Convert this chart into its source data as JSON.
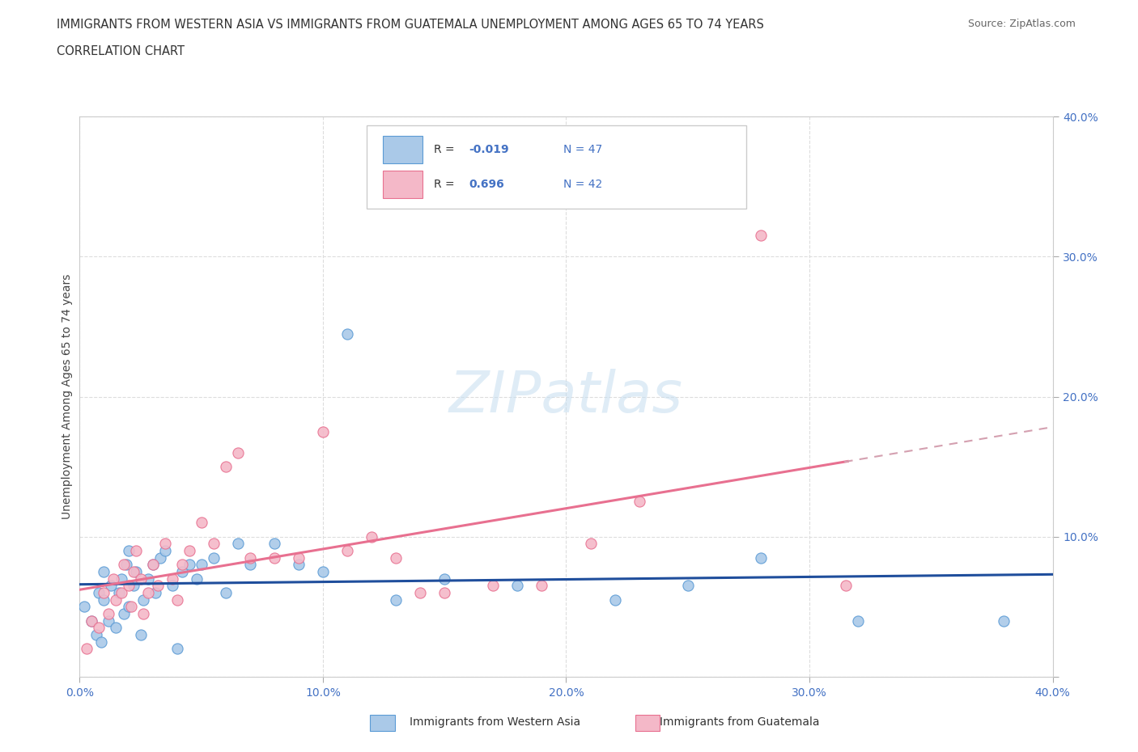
{
  "title_line1": "IMMIGRANTS FROM WESTERN ASIA VS IMMIGRANTS FROM GUATEMALA UNEMPLOYMENT AMONG AGES 65 TO 74 YEARS",
  "title_line2": "CORRELATION CHART",
  "source_text": "Source: ZipAtlas.com",
  "ylabel": "Unemployment Among Ages 65 to 74 years",
  "xlim": [
    0.0,
    0.4
  ],
  "ylim": [
    0.0,
    0.4
  ],
  "xticks": [
    0.0,
    0.1,
    0.2,
    0.3,
    0.4
  ],
  "yticks": [
    0.0,
    0.1,
    0.2,
    0.3,
    0.4
  ],
  "grid_color": "#dddddd",
  "background_color": "#ffffff",
  "watermark_text": "ZIPatlas",
  "series1_color": "#aac9e8",
  "series1_edge": "#5b9bd5",
  "series2_color": "#f4b8c8",
  "series2_edge": "#e87090",
  "series1_label": "Immigrants from Western Asia",
  "series2_label": "Immigrants from Guatemala",
  "series1_R": -0.019,
  "series1_N": 47,
  "series2_R": 0.696,
  "series2_N": 42,
  "line1_color": "#1f4e9c",
  "line2_color": "#e87090",
  "line2_dash_color": "#d4a0b0",
  "series1_x": [
    0.002,
    0.005,
    0.007,
    0.008,
    0.009,
    0.01,
    0.01,
    0.012,
    0.013,
    0.015,
    0.016,
    0.017,
    0.018,
    0.019,
    0.02,
    0.02,
    0.022,
    0.023,
    0.025,
    0.026,
    0.028,
    0.03,
    0.031,
    0.033,
    0.035,
    0.038,
    0.04,
    0.042,
    0.045,
    0.048,
    0.05,
    0.055,
    0.06,
    0.065,
    0.07,
    0.08,
    0.09,
    0.1,
    0.11,
    0.13,
    0.15,
    0.18,
    0.22,
    0.25,
    0.28,
    0.32,
    0.38
  ],
  "series1_y": [
    0.05,
    0.04,
    0.03,
    0.06,
    0.025,
    0.055,
    0.075,
    0.04,
    0.065,
    0.035,
    0.06,
    0.07,
    0.045,
    0.08,
    0.05,
    0.09,
    0.065,
    0.075,
    0.03,
    0.055,
    0.07,
    0.08,
    0.06,
    0.085,
    0.09,
    0.065,
    0.02,
    0.075,
    0.08,
    0.07,
    0.08,
    0.085,
    0.06,
    0.095,
    0.08,
    0.095,
    0.08,
    0.075,
    0.245,
    0.055,
    0.07,
    0.065,
    0.055,
    0.065,
    0.085,
    0.04,
    0.04
  ],
  "series2_x": [
    0.003,
    0.005,
    0.008,
    0.01,
    0.012,
    0.014,
    0.015,
    0.017,
    0.018,
    0.02,
    0.021,
    0.022,
    0.023,
    0.025,
    0.026,
    0.028,
    0.03,
    0.032,
    0.035,
    0.038,
    0.04,
    0.042,
    0.045,
    0.05,
    0.055,
    0.06,
    0.065,
    0.07,
    0.08,
    0.09,
    0.1,
    0.11,
    0.12,
    0.13,
    0.14,
    0.15,
    0.17,
    0.19,
    0.21,
    0.23,
    0.28,
    0.315
  ],
  "series2_y": [
    0.02,
    0.04,
    0.035,
    0.06,
    0.045,
    0.07,
    0.055,
    0.06,
    0.08,
    0.065,
    0.05,
    0.075,
    0.09,
    0.07,
    0.045,
    0.06,
    0.08,
    0.065,
    0.095,
    0.07,
    0.055,
    0.08,
    0.09,
    0.11,
    0.095,
    0.15,
    0.16,
    0.085,
    0.085,
    0.085,
    0.175,
    0.09,
    0.1,
    0.085,
    0.06,
    0.06,
    0.065,
    0.065,
    0.095,
    0.125,
    0.315,
    0.065
  ]
}
